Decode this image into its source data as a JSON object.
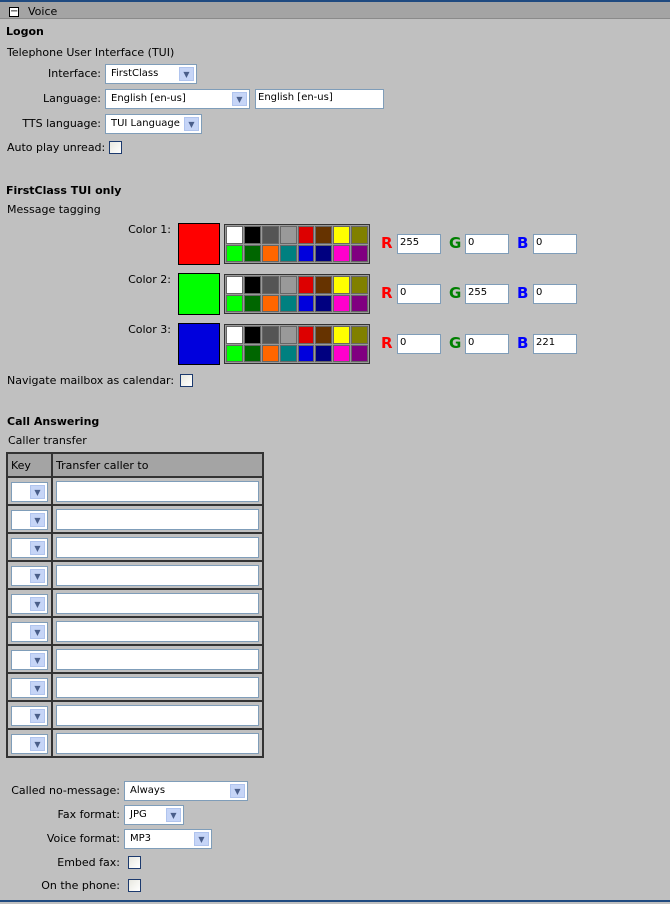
{
  "header": {
    "title": "Voice"
  },
  "logon": {
    "heading": "Logon",
    "subheading": "Telephone User Interface (TUI)",
    "interface": {
      "label": "Interface:",
      "value": "FirstClass"
    },
    "language": {
      "label": "Language:",
      "value": "English [en-us]",
      "text": "English [en-us]"
    },
    "tts": {
      "label": "TTS language:",
      "value": "TUI Language"
    },
    "autoplay": {
      "label": "Auto play unread:",
      "checked": false
    }
  },
  "tui": {
    "heading": "FirstClass TUI only",
    "subheading": "Message tagging",
    "palette": [
      "#ffffff",
      "#000000",
      "#555555",
      "#999999",
      "#dd0000",
      "#663300",
      "#ffff00",
      "#808000",
      "#00ff00",
      "#006600",
      "#ff6600",
      "#008080",
      "#0000dd",
      "#000080",
      "#ff00cc",
      "#800080"
    ],
    "rgb_labels": {
      "r": "R",
      "g": "G",
      "b": "B"
    },
    "colors": [
      {
        "label": "Color 1:",
        "swatch": "#ff0000",
        "r": "255",
        "g": "0",
        "b": "0"
      },
      {
        "label": "Color 2:",
        "swatch": "#00ff00",
        "r": "0",
        "g": "255",
        "b": "0"
      },
      {
        "label": "Color 3:",
        "swatch": "#0000dd",
        "r": "0",
        "g": "0",
        "b": "221"
      }
    ],
    "navigate": {
      "label": "Navigate mailbox as calendar:",
      "checked": false
    }
  },
  "call": {
    "heading": "Call Answering",
    "subheading": "Caller transfer",
    "columns": [
      "Key",
      "Transfer caller to"
    ],
    "rows": [
      {
        "key": "",
        "to": ""
      },
      {
        "key": "",
        "to": ""
      },
      {
        "key": "",
        "to": ""
      },
      {
        "key": "",
        "to": ""
      },
      {
        "key": "",
        "to": ""
      },
      {
        "key": "",
        "to": ""
      },
      {
        "key": "",
        "to": ""
      },
      {
        "key": "",
        "to": ""
      },
      {
        "key": "",
        "to": ""
      },
      {
        "key": "",
        "to": ""
      }
    ],
    "no_message": {
      "label": "Called no-message:",
      "value": "Always"
    },
    "fax_format": {
      "label": "Fax format:",
      "value": "JPG"
    },
    "voice_format": {
      "label": "Voice format:",
      "value": "MP3"
    },
    "embed_fax": {
      "label": "Embed fax:",
      "checked": false
    },
    "on_phone": {
      "label": "On the phone:",
      "checked": false
    }
  }
}
